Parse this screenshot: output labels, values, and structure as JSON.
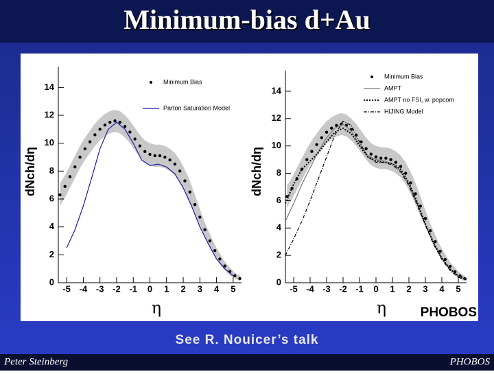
{
  "slide": {
    "title": "Minimum-bias d+Au",
    "subtitle": "See R. Nouicer’s talk",
    "footer_left": "Peter Steinberg",
    "footer_right": "PHOBOS",
    "logo": "PHOBOS"
  },
  "chart_data": [
    {
      "type": "line",
      "xlabel": "η",
      "ylabel": "dNch/dη",
      "xlim": [
        -5.5,
        5.5
      ],
      "xticks": [
        -5,
        -4,
        -3,
        -2,
        -1,
        0,
        1,
        2,
        3,
        4,
        5
      ],
      "ylim": [
        0,
        15
      ],
      "yticks": [
        0,
        2,
        4,
        6,
        8,
        10,
        12,
        14
      ],
      "series": [
        {
          "name": "Minimum Bias",
          "style": "markers",
          "color": "#000000",
          "band_color": "#c8c8c8",
          "x": [
            -5.4,
            -5.1,
            -4.8,
            -4.5,
            -4.2,
            -3.9,
            -3.6,
            -3.3,
            -3.0,
            -2.7,
            -2.4,
            -2.1,
            -1.8,
            -1.5,
            -1.2,
            -0.9,
            -0.6,
            -0.3,
            0,
            0.3,
            0.6,
            0.9,
            1.2,
            1.5,
            1.8,
            2.1,
            2.4,
            2.7,
            3.0,
            3.3,
            3.6,
            3.9,
            4.2,
            4.5,
            4.8,
            5.1,
            5.4
          ],
          "values": [
            6.3,
            6.9,
            7.6,
            8.3,
            9.0,
            9.6,
            10.1,
            10.6,
            11.0,
            11.3,
            11.5,
            11.6,
            11.5,
            11.2,
            10.8,
            10.3,
            9.8,
            9.4,
            9.2,
            9.1,
            9.1,
            9.0,
            8.8,
            8.5,
            8.0,
            7.3,
            6.5,
            5.6,
            4.7,
            3.8,
            3.0,
            2.3,
            1.7,
            1.2,
            0.8,
            0.5,
            0.3
          ],
          "errors": [
            0.8,
            0.8,
            0.8,
            0.8,
            0.8,
            0.8,
            0.8,
            0.8,
            0.8,
            0.8,
            0.8,
            0.8,
            0.8,
            0.8,
            0.8,
            0.8,
            0.8,
            0.8,
            0.8,
            0.8,
            0.8,
            0.8,
            0.8,
            0.8,
            0.8,
            0.8,
            0.8,
            0.7,
            0.6,
            0.5,
            0.5,
            0.4,
            0.4,
            0.3,
            0.3,
            0.2,
            0.2
          ]
        },
        {
          "name": "Parton Saturation Model",
          "style": "solid",
          "color": "#1a1aa0",
          "x": [
            -5,
            -4.5,
            -4,
            -3.5,
            -3,
            -2.5,
            -2,
            -1.5,
            -1,
            -0.5,
            0,
            0.5,
            1,
            1.5,
            2,
            2.5,
            3,
            3.5,
            4,
            4.5,
            5
          ],
          "values": [
            2.5,
            3.8,
            5.5,
            7.5,
            9.6,
            11.0,
            11.5,
            11.0,
            10.0,
            8.8,
            8.4,
            8.5,
            8.3,
            7.8,
            6.8,
            5.5,
            4.0,
            2.8,
            1.7,
            1.0,
            0.5
          ]
        }
      ]
    },
    {
      "type": "line",
      "xlabel": "η",
      "ylabel": "dNch/dη",
      "xlim": [
        -5.5,
        5.5
      ],
      "xticks": [
        -5,
        -4,
        -3,
        -2,
        -1,
        0,
        1,
        2,
        3,
        4,
        5
      ],
      "ylim": [
        0,
        15
      ],
      "yticks": [
        0,
        2,
        4,
        6,
        8,
        10,
        12,
        14
      ],
      "series": [
        {
          "name": "Minimum Bias",
          "style": "markers",
          "color": "#000000",
          "band_color": "#c8c8c8",
          "x": [
            -5.4,
            -5.1,
            -4.8,
            -4.5,
            -4.2,
            -3.9,
            -3.6,
            -3.3,
            -3.0,
            -2.7,
            -2.4,
            -2.1,
            -1.8,
            -1.5,
            -1.2,
            -0.9,
            -0.6,
            -0.3,
            0,
            0.3,
            0.6,
            0.9,
            1.2,
            1.5,
            1.8,
            2.1,
            2.4,
            2.7,
            3.0,
            3.3,
            3.6,
            3.9,
            4.2,
            4.5,
            4.8,
            5.1,
            5.4
          ],
          "values": [
            6.3,
            6.9,
            7.6,
            8.3,
            9.0,
            9.6,
            10.1,
            10.6,
            11.0,
            11.3,
            11.5,
            11.6,
            11.5,
            11.2,
            10.8,
            10.3,
            9.8,
            9.4,
            9.2,
            9.1,
            9.1,
            9.0,
            8.8,
            8.5,
            8.0,
            7.3,
            6.5,
            5.6,
            4.7,
            3.8,
            3.0,
            2.3,
            1.7,
            1.2,
            0.8,
            0.5,
            0.3
          ],
          "errors": [
            0.8,
            0.8,
            0.8,
            0.8,
            0.8,
            0.8,
            0.8,
            0.8,
            0.8,
            0.8,
            0.8,
            0.8,
            0.8,
            0.8,
            0.8,
            0.8,
            0.8,
            0.8,
            0.8,
            0.8,
            0.8,
            0.8,
            0.8,
            0.8,
            0.8,
            0.8,
            0.8,
            0.7,
            0.6,
            0.5,
            0.5,
            0.4,
            0.4,
            0.3,
            0.3,
            0.2,
            0.2
          ]
        },
        {
          "name": "AMPT",
          "style": "solid",
          "color": "#777777",
          "x": [
            -5.5,
            -5,
            -4.5,
            -4,
            -3.5,
            -3,
            -2.5,
            -2,
            -1.5,
            -1,
            -0.5,
            0,
            0.5,
            1,
            1.5,
            2,
            2.5,
            3,
            3.5,
            4,
            4.5,
            5,
            5.5
          ],
          "values": [
            4.5,
            5.8,
            7.2,
            8.4,
            9.6,
            10.6,
            11.3,
            11.6,
            11.1,
            10.1,
            9.3,
            9.0,
            8.9,
            8.7,
            8.2,
            7.2,
            5.8,
            4.2,
            2.9,
            1.8,
            1.0,
            0.5,
            0.2
          ]
        },
        {
          "name": "AMPT no FSI, w. popcorn",
          "style": "dotted",
          "color": "#000000",
          "x": [
            -5.5,
            -5,
            -4.5,
            -4,
            -3.5,
            -3,
            -2.5,
            -2,
            -1.5,
            -1,
            -0.5,
            0,
            0.5,
            1,
            1.5,
            2,
            2.5,
            3,
            3.5,
            4,
            4.5,
            5,
            5.5
          ],
          "values": [
            5.8,
            7.2,
            8.3,
            8.9,
            9.5,
            10.3,
            11.0,
            11.3,
            10.9,
            10.0,
            9.2,
            8.9,
            8.8,
            8.7,
            8.3,
            7.3,
            5.9,
            4.3,
            2.9,
            1.8,
            1.0,
            0.5,
            0.3
          ]
        },
        {
          "name": "HIJING Model",
          "style": "dashdot",
          "color": "#000000",
          "x": [
            -5.5,
            -5,
            -4.5,
            -4,
            -3.5,
            -3,
            -2.5,
            -2,
            -1.5,
            -1,
            -0.5,
            0,
            0.5,
            1,
            1.5,
            2,
            2.5,
            3,
            3.5,
            4,
            4.5,
            5,
            5.5
          ],
          "values": [
            2.0,
            3.2,
            4.5,
            6.0,
            7.6,
            9.2,
            10.8,
            11.8,
            11.5,
            10.3,
            9.2,
            8.8,
            8.8,
            8.6,
            8.1,
            7.1,
            5.7,
            4.2,
            2.8,
            1.7,
            0.9,
            0.4,
            0.2
          ]
        }
      ]
    }
  ]
}
